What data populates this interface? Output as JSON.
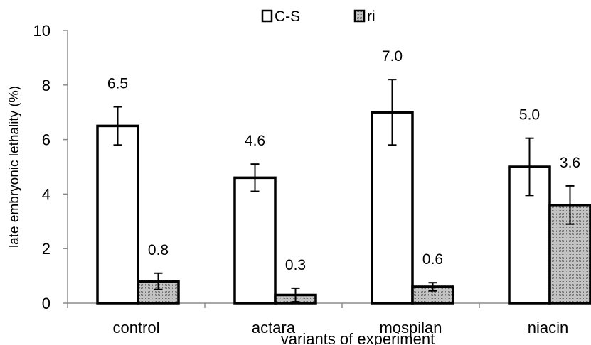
{
  "chart_data": {
    "type": "bar",
    "categories": [
      "control",
      "actara",
      "mospilan",
      "niacin"
    ],
    "series": [
      {
        "name": "C-S",
        "values": [
          6.5,
          4.6,
          7.0,
          5.0
        ],
        "errors": [
          0.7,
          0.5,
          1.2,
          1.05
        ],
        "labels": [
          "6.5",
          "4.6",
          "7.0",
          "5.0"
        ],
        "fill": "#ffffff",
        "pattern": "none"
      },
      {
        "name": "ri",
        "values": [
          0.8,
          0.3,
          0.6,
          3.6
        ],
        "errors": [
          0.3,
          0.25,
          0.15,
          0.7
        ],
        "labels": [
          "0.8",
          "0.3",
          "0.6",
          "3.6"
        ],
        "fill": "#bdbdbd",
        "pattern": "stipple"
      }
    ],
    "y_ticks": [
      "0",
      "2",
      "4",
      "6",
      "8",
      "10"
    ],
    "ylim": [
      0,
      10
    ],
    "xlabel": "variants of experiment",
    "ylabel": "late embryonic lethality (%)",
    "legend_position": "top-center",
    "grid": false
  }
}
